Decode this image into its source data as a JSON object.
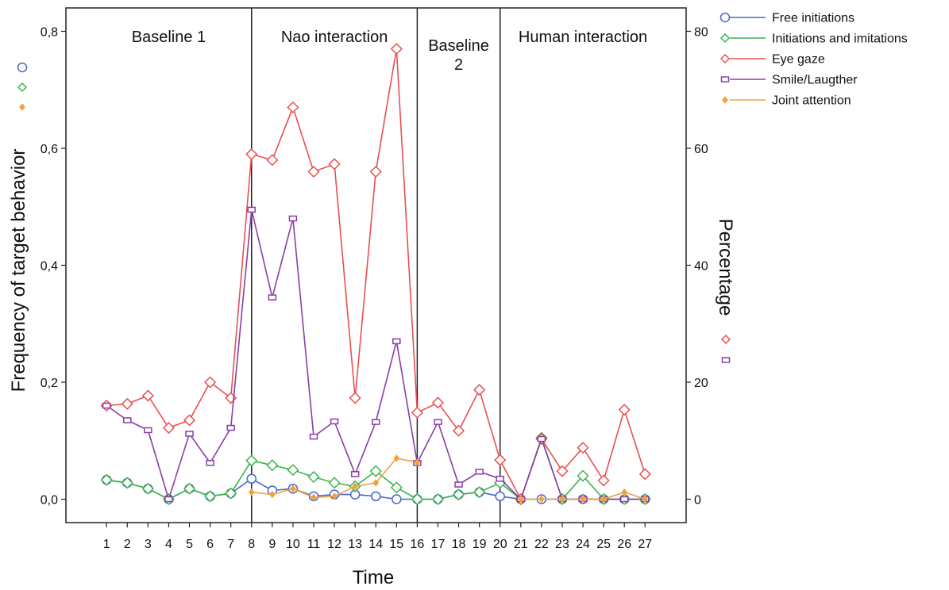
{
  "chart_data": {
    "type": "line",
    "xlabel": "Time",
    "ylabel_left": "Frequency of target behavior",
    "ylabel_right": "Percentage",
    "x": [
      1,
      2,
      3,
      4,
      5,
      6,
      7,
      8,
      9,
      10,
      11,
      12,
      13,
      14,
      15,
      16,
      17,
      18,
      19,
      20,
      21,
      22,
      23,
      24,
      25,
      26,
      27
    ],
    "left_ylim": [
      -0.04,
      0.84
    ],
    "left_ticks": [
      "0,0",
      "0,2",
      "0,4",
      "0,6",
      "0,8"
    ],
    "right_ylim": [
      -4,
      84
    ],
    "right_ticks": [
      "0",
      "20",
      "40",
      "60",
      "80"
    ],
    "phases": [
      {
        "label": "Baseline 1",
        "start": 0.0,
        "end": 8
      },
      {
        "label": "Nao interaction",
        "start": 8,
        "end": 16
      },
      {
        "label": "Baseline 2",
        "start": 16,
        "end": 20
      },
      {
        "label": "Human interaction",
        "start": 20,
        "end": 28.0
      }
    ],
    "grid": false,
    "legend_position": "outside-top-right",
    "series": [
      {
        "name": "Free initiations",
        "color": "#4a67c8",
        "marker": "circle",
        "axis": "left",
        "values": [
          0.033,
          0.028,
          0.018,
          0.0,
          0.018,
          0.005,
          0.01,
          0.035,
          0.015,
          0.018,
          0.005,
          0.008,
          0.008,
          0.005,
          0.0,
          0.0,
          0.0,
          0.008,
          0.012,
          0.005,
          0.0,
          0.0,
          0.0,
          0.0,
          0.0,
          0.0,
          0.0
        ]
      },
      {
        "name": "Initiations and imitations",
        "color": "#3cb44b",
        "marker": "diamond",
        "axis": "left",
        "values": [
          0.033,
          0.028,
          0.018,
          0.0,
          0.018,
          0.005,
          0.01,
          0.066,
          0.058,
          0.05,
          0.038,
          0.028,
          0.022,
          0.048,
          0.02,
          0.0,
          0.0,
          0.008,
          0.012,
          0.028,
          0.0,
          0.105,
          0.0,
          0.04,
          0.0,
          0.0,
          0.0
        ]
      },
      {
        "name": "Eye gaze",
        "color": "#e8504f",
        "marker": "diamond",
        "axis": "right",
        "values": [
          16,
          16.3,
          17.7,
          12.2,
          13.5,
          20,
          17.3,
          59,
          58,
          67,
          56,
          57.3,
          17.3,
          56,
          77,
          14.8,
          16.5,
          11.7,
          18.7,
          6.7,
          0,
          10.3,
          4.8,
          8.8,
          3.2,
          15.3,
          4.3
        ]
      },
      {
        "name": "Smile/Laugther",
        "color": "#8a3ea8",
        "marker": "bar",
        "axis": "right",
        "values": [
          16,
          13.5,
          11.8,
          0,
          11.2,
          6.2,
          12.2,
          49.5,
          34.5,
          48,
          10.7,
          13.3,
          4.3,
          13.2,
          27,
          6.2,
          13.2,
          2.5,
          4.7,
          3.5,
          0,
          10.3,
          0,
          0,
          0,
          0,
          0
        ]
      },
      {
        "name": "Joint attention",
        "color": "#f0a13a",
        "marker": "small-diamond",
        "axis": "left",
        "values": [
          null,
          null,
          null,
          null,
          null,
          null,
          null,
          0.012,
          0.008,
          0.018,
          0.003,
          0.005,
          0.022,
          0.028,
          0.07,
          0.063,
          null,
          null,
          null,
          null,
          0.0,
          0.0,
          0.0,
          0.0,
          0.0,
          0.012,
          0.0
        ]
      }
    ]
  }
}
